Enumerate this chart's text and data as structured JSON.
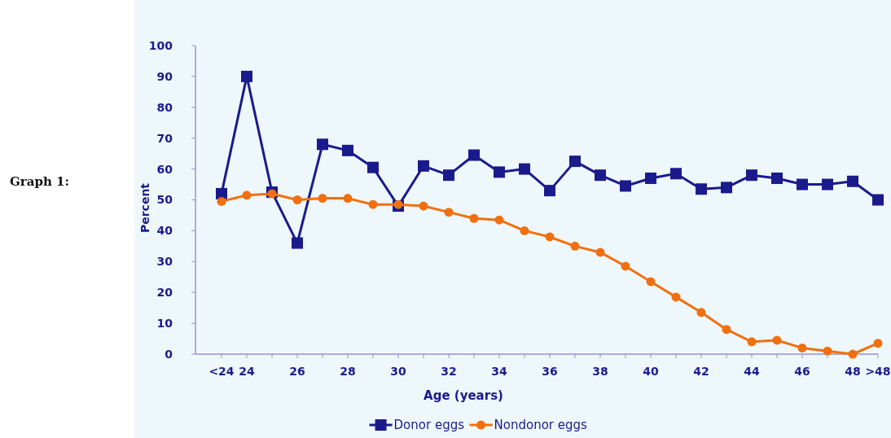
{
  "chart_data": {
    "type": "line",
    "xlabel": "Age (years)",
    "ylabel": "Percent",
    "annotations": [
      "Graph 1:"
    ],
    "categories": [
      "<24",
      "24",
      null,
      "26",
      null,
      "28",
      null,
      "30",
      null,
      "32",
      null,
      "34",
      null,
      "36",
      null,
      "38",
      null,
      "40",
      null,
      "42",
      null,
      "44",
      null,
      "46",
      null,
      "48",
      ">48"
    ],
    "series": [
      {
        "name": "Donor eggs",
        "color": "#1a1a8c",
        "marker": "square",
        "values": [
          52,
          90,
          52.5,
          36,
          68,
          66,
          60.5,
          48,
          61,
          58,
          64.5,
          59,
          60,
          53,
          62.5,
          58,
          54.5,
          57,
          58.5,
          53.5,
          54,
          58,
          57,
          55,
          55,
          56,
          50
        ]
      },
      {
        "name": "Nondonor eggs",
        "color": "#f07010",
        "marker": "circle",
        "values": [
          49.5,
          51.5,
          52,
          50,
          50.5,
          50.5,
          48.5,
          48.5,
          48,
          46,
          44,
          43.5,
          40,
          38,
          35,
          33,
          28.5,
          23.5,
          18.5,
          13.5,
          8,
          4,
          4.5,
          2,
          1,
          0,
          3.5
        ]
      }
    ],
    "ylim": [
      0,
      100
    ],
    "yticks": [
      0,
      10,
      20,
      30,
      40,
      50,
      60,
      70,
      80,
      90,
      100
    ],
    "grid": false,
    "legend": "bottom",
    "line_style": "solid"
  }
}
